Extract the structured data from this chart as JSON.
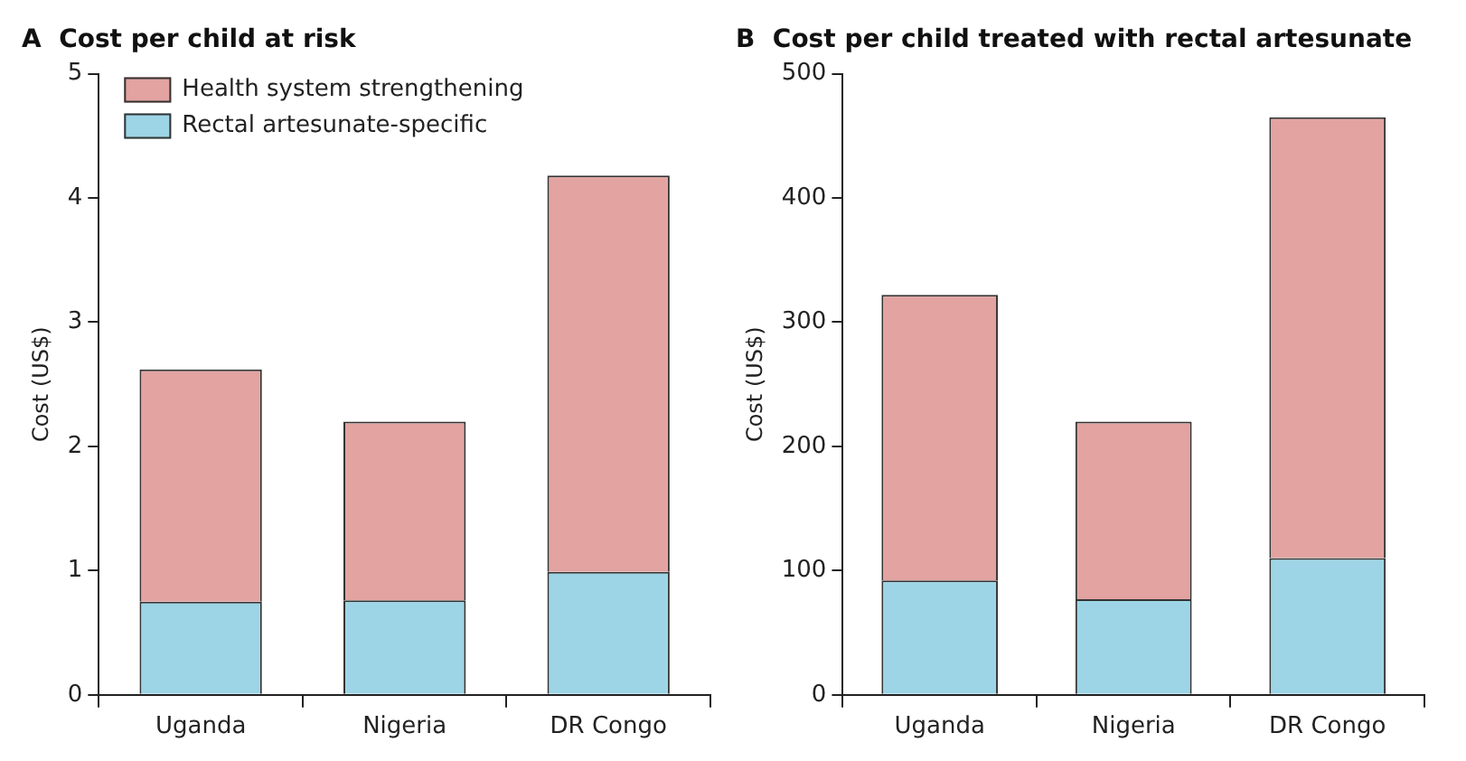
{
  "chart_data": [
    {
      "type": "bar",
      "title": "A  Cost per child at risk",
      "ylabel": "Cost (US$)",
      "categories": [
        "Uganda",
        "Nigeria",
        "DR Congo"
      ],
      "stacked": true,
      "ylim": [
        0,
        5
      ],
      "yticks": [
        0,
        1,
        2,
        3,
        4,
        5
      ],
      "legend": "top left",
      "series": [
        {
          "name": "Rectal artesunate-specific",
          "color": "#9dd5e6",
          "values": [
            0.75,
            0.76,
            0.99
          ]
        },
        {
          "name": "Health system strengthening",
          "color": "#e2a3a1",
          "values": [
            1.87,
            1.44,
            3.19
          ]
        }
      ]
    },
    {
      "type": "bar",
      "title": "B  Cost per child treated with rectal artesunate",
      "ylabel": "Cost (US$)",
      "categories": [
        "Uganda",
        "Nigeria",
        "DR Congo"
      ],
      "stacked": true,
      "ylim": [
        0,
        500
      ],
      "yticks": [
        0,
        100,
        200,
        300,
        400,
        500
      ],
      "series": [
        {
          "color": "#9dd5e6",
          "values": [
            92,
            77,
            110
          ]
        },
        {
          "color": "#e2a3a1",
          "values": [
            230,
            143,
            355
          ]
        }
      ]
    }
  ]
}
